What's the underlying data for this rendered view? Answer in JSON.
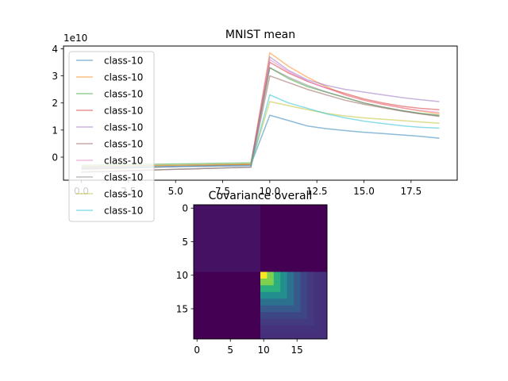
{
  "chart_data": [
    {
      "type": "line",
      "title": "MNIST mean",
      "xlabel": "",
      "ylabel": "",
      "offset_text": "1e10",
      "x_ticks": [
        0.0,
        2.5,
        5.0,
        7.5,
        10.0,
        12.5,
        15.0,
        17.5
      ],
      "x_tick_labels": [
        "0.0",
        "2.5",
        "5.0",
        "7.5",
        "10.0",
        "12.5",
        "15.0",
        "17.5"
      ],
      "y_ticks": [
        0,
        1,
        2,
        3,
        4
      ],
      "y_tick_labels": [
        "0",
        "1",
        "2",
        "3",
        "4"
      ],
      "xlim": [
        -0.95,
        19.95
      ],
      "ylim": [
        -0.85,
        4.1
      ],
      "legend_position": "upper-left",
      "grid": false,
      "x": [
        0,
        1,
        2,
        3,
        4,
        5,
        6,
        7,
        8,
        9,
        10,
        11,
        12,
        13,
        14,
        15,
        16,
        17,
        18,
        19
      ],
      "series": [
        {
          "name": "class-10",
          "color": "#1f77b4",
          "values": [
            -0.45,
            -0.43,
            -0.41,
            -0.39,
            -0.37,
            -0.35,
            -0.33,
            -0.31,
            -0.29,
            -0.27,
            1.55,
            1.35,
            1.15,
            1.05,
            0.98,
            0.92,
            0.87,
            0.82,
            0.77,
            0.7
          ]
        },
        {
          "name": "class-10",
          "color": "#ff7f0e",
          "values": [
            -0.45,
            -0.43,
            -0.41,
            -0.39,
            -0.37,
            -0.35,
            -0.33,
            -0.31,
            -0.29,
            -0.27,
            3.85,
            3.35,
            2.95,
            2.6,
            2.3,
            2.1,
            1.95,
            1.82,
            1.7,
            1.6
          ]
        },
        {
          "name": "class-10",
          "color": "#2ca02c",
          "values": [
            -0.3,
            -0.29,
            -0.28,
            -0.27,
            -0.26,
            -0.25,
            -0.24,
            -0.23,
            -0.22,
            -0.21,
            3.3,
            2.9,
            2.6,
            2.4,
            2.2,
            2.0,
            1.85,
            1.72,
            1.62,
            1.55
          ]
        },
        {
          "name": "class-10",
          "color": "#d62728",
          "values": [
            -0.35,
            -0.34,
            -0.33,
            -0.32,
            -0.31,
            -0.3,
            -0.29,
            -0.28,
            -0.27,
            -0.26,
            3.5,
            3.1,
            2.8,
            2.55,
            2.35,
            2.15,
            2.0,
            1.88,
            1.8,
            1.75
          ]
        },
        {
          "name": "class-10",
          "color": "#9467bd",
          "values": [
            -0.4,
            -0.39,
            -0.38,
            -0.37,
            -0.36,
            -0.35,
            -0.34,
            -0.33,
            -0.32,
            -0.31,
            3.7,
            3.2,
            2.85,
            2.65,
            2.5,
            2.4,
            2.3,
            2.2,
            2.12,
            2.05
          ]
        },
        {
          "name": "class-10",
          "color": "#8c564b",
          "values": [
            -0.55,
            -0.53,
            -0.51,
            -0.49,
            -0.47,
            -0.45,
            -0.43,
            -0.41,
            -0.39,
            -0.37,
            3.0,
            2.75,
            2.5,
            2.3,
            2.1,
            1.95,
            1.82,
            1.7,
            1.6,
            1.52
          ]
        },
        {
          "name": "class-10",
          "color": "#e377c2",
          "values": [
            -0.4,
            -0.39,
            -0.38,
            -0.37,
            -0.36,
            -0.35,
            -0.34,
            -0.33,
            -0.32,
            -0.31,
            3.6,
            3.15,
            2.8,
            2.55,
            2.3,
            2.1,
            1.95,
            1.82,
            1.72,
            1.65
          ]
        },
        {
          "name": "class-10",
          "color": "#7f7f7f",
          "values": [
            -0.55,
            -0.53,
            -0.51,
            -0.49,
            -0.47,
            -0.45,
            -0.43,
            -0.41,
            -0.39,
            -0.37,
            3.3,
            2.95,
            2.65,
            2.4,
            2.2,
            2.0,
            1.85,
            1.72,
            1.6,
            1.5
          ]
        },
        {
          "name": "class-10",
          "color": "#bcbd22",
          "values": [
            -0.35,
            -0.34,
            -0.33,
            -0.32,
            -0.31,
            -0.3,
            -0.29,
            -0.28,
            -0.27,
            -0.26,
            2.05,
            1.9,
            1.75,
            1.62,
            1.52,
            1.45,
            1.4,
            1.35,
            1.3,
            1.25
          ]
        },
        {
          "name": "class-10",
          "color": "#17becf",
          "values": [
            -0.4,
            -0.39,
            -0.38,
            -0.37,
            -0.36,
            -0.35,
            -0.34,
            -0.33,
            -0.32,
            -0.31,
            2.3,
            2.0,
            1.8,
            1.6,
            1.45,
            1.33,
            1.24,
            1.16,
            1.1,
            1.07
          ]
        }
      ]
    },
    {
      "type": "heatmap",
      "title": "Covariance overall",
      "xlabel": "",
      "ylabel": "",
      "colormap": "viridis",
      "size": 20,
      "x_ticks": [
        0,
        5,
        10,
        15
      ],
      "x_tick_labels": [
        "0",
        "5",
        "10",
        "15"
      ],
      "y_ticks": [
        0,
        5,
        10,
        15
      ],
      "y_tick_labels": [
        "0",
        "5",
        "10",
        "15"
      ],
      "block_split": 10,
      "upper_left_value": 0.05,
      "off_diagonal_value": 0.0,
      "lower_right_peak": 1.0,
      "lower_right_base": 0.14
    }
  ]
}
